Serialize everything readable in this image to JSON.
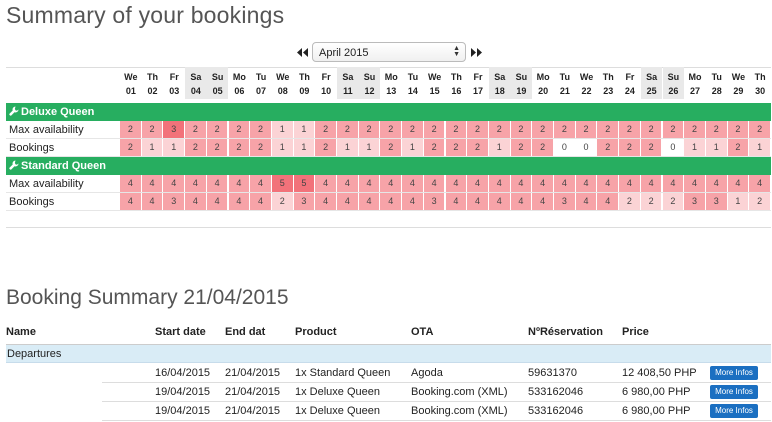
{
  "page_title": "Summary of your bookings",
  "month_selector": {
    "value": "April 2015"
  },
  "colors": {
    "high": "#f2727a",
    "mid": "#f7a3a8",
    "low": "#fbd3d5",
    "none": "#ffffff",
    "room": "#27ae60",
    "button": "#1b6fc1"
  },
  "days": [
    {
      "dow": "We",
      "d": "01"
    },
    {
      "dow": "Th",
      "d": "02"
    },
    {
      "dow": "Fr",
      "d": "03"
    },
    {
      "dow": "Sa",
      "d": "04"
    },
    {
      "dow": "Su",
      "d": "05"
    },
    {
      "dow": "Mo",
      "d": "06"
    },
    {
      "dow": "Tu",
      "d": "07"
    },
    {
      "dow": "We",
      "d": "08"
    },
    {
      "dow": "Th",
      "d": "09"
    },
    {
      "dow": "Fr",
      "d": "10"
    },
    {
      "dow": "Sa",
      "d": "11"
    },
    {
      "dow": "Su",
      "d": "12"
    },
    {
      "dow": "Mo",
      "d": "13"
    },
    {
      "dow": "Tu",
      "d": "14"
    },
    {
      "dow": "We",
      "d": "15"
    },
    {
      "dow": "Th",
      "d": "16"
    },
    {
      "dow": "Fr",
      "d": "17"
    },
    {
      "dow": "Sa",
      "d": "18"
    },
    {
      "dow": "Su",
      "d": "19"
    },
    {
      "dow": "Mo",
      "d": "20"
    },
    {
      "dow": "Tu",
      "d": "21"
    },
    {
      "dow": "We",
      "d": "22"
    },
    {
      "dow": "Th",
      "d": "23"
    },
    {
      "dow": "Fr",
      "d": "24"
    },
    {
      "dow": "Sa",
      "d": "25"
    },
    {
      "dow": "Su",
      "d": "26"
    },
    {
      "dow": "Mo",
      "d": "27"
    },
    {
      "dow": "Tu",
      "d": "28"
    },
    {
      "dow": "We",
      "d": "29"
    },
    {
      "dow": "Th",
      "d": "30"
    }
  ],
  "rooms": [
    {
      "name": "Deluxe Queen",
      "rows": [
        {
          "label": "Max availability",
          "values": [
            2,
            2,
            3,
            2,
            2,
            2,
            2,
            1,
            1,
            2,
            2,
            2,
            2,
            2,
            2,
            2,
            2,
            2,
            2,
            2,
            2,
            2,
            2,
            2,
            2,
            2,
            2,
            2,
            2,
            2
          ]
        },
        {
          "label": "Bookings",
          "values": [
            2,
            1,
            1,
            2,
            2,
            2,
            2,
            1,
            1,
            2,
            1,
            1,
            2,
            1,
            2,
            2,
            2,
            1,
            2,
            2,
            0,
            0,
            2,
            2,
            2,
            0,
            1,
            1,
            2,
            1
          ]
        }
      ]
    },
    {
      "name": "Standard Queen",
      "rows": [
        {
          "label": "Max availability",
          "values": [
            4,
            4,
            4,
            4,
            4,
            4,
            4,
            5,
            5,
            4,
            4,
            4,
            4,
            4,
            4,
            4,
            4,
            4,
            4,
            4,
            4,
            4,
            4,
            4,
            4,
            4,
            4,
            4,
            4,
            4
          ]
        },
        {
          "label": "Bookings",
          "values": [
            4,
            4,
            3,
            4,
            4,
            4,
            4,
            2,
            3,
            4,
            4,
            4,
            4,
            4,
            3,
            4,
            4,
            4,
            4,
            4,
            3,
            4,
            4,
            2,
            2,
            2,
            3,
            3,
            1,
            2
          ]
        }
      ]
    }
  ],
  "summary": {
    "title": "Booking Summary 21/04/2015",
    "columns": [
      "Name",
      "Start date",
      "End dat",
      "Product",
      "OTA",
      "NºRéservation",
      "Price"
    ],
    "section": "Departures",
    "button_label": "More Infos",
    "rows": [
      {
        "start": "16/04/2015",
        "end": "21/04/2015",
        "product": "1x Standard Queen",
        "ota": "Agoda",
        "res": "59631370",
        "price": "12 408,50 PHP"
      },
      {
        "start": "19/04/2015",
        "end": "21/04/2015",
        "product": "1x Deluxe Queen",
        "ota": "Booking.com (XML)",
        "res": "533162046",
        "price": "6 980,00 PHP"
      },
      {
        "start": "19/04/2015",
        "end": "21/04/2015",
        "product": "1x Deluxe Queen",
        "ota": "Booking.com (XML)",
        "res": "533162046",
        "price": "6 980,00 PHP"
      }
    ]
  }
}
